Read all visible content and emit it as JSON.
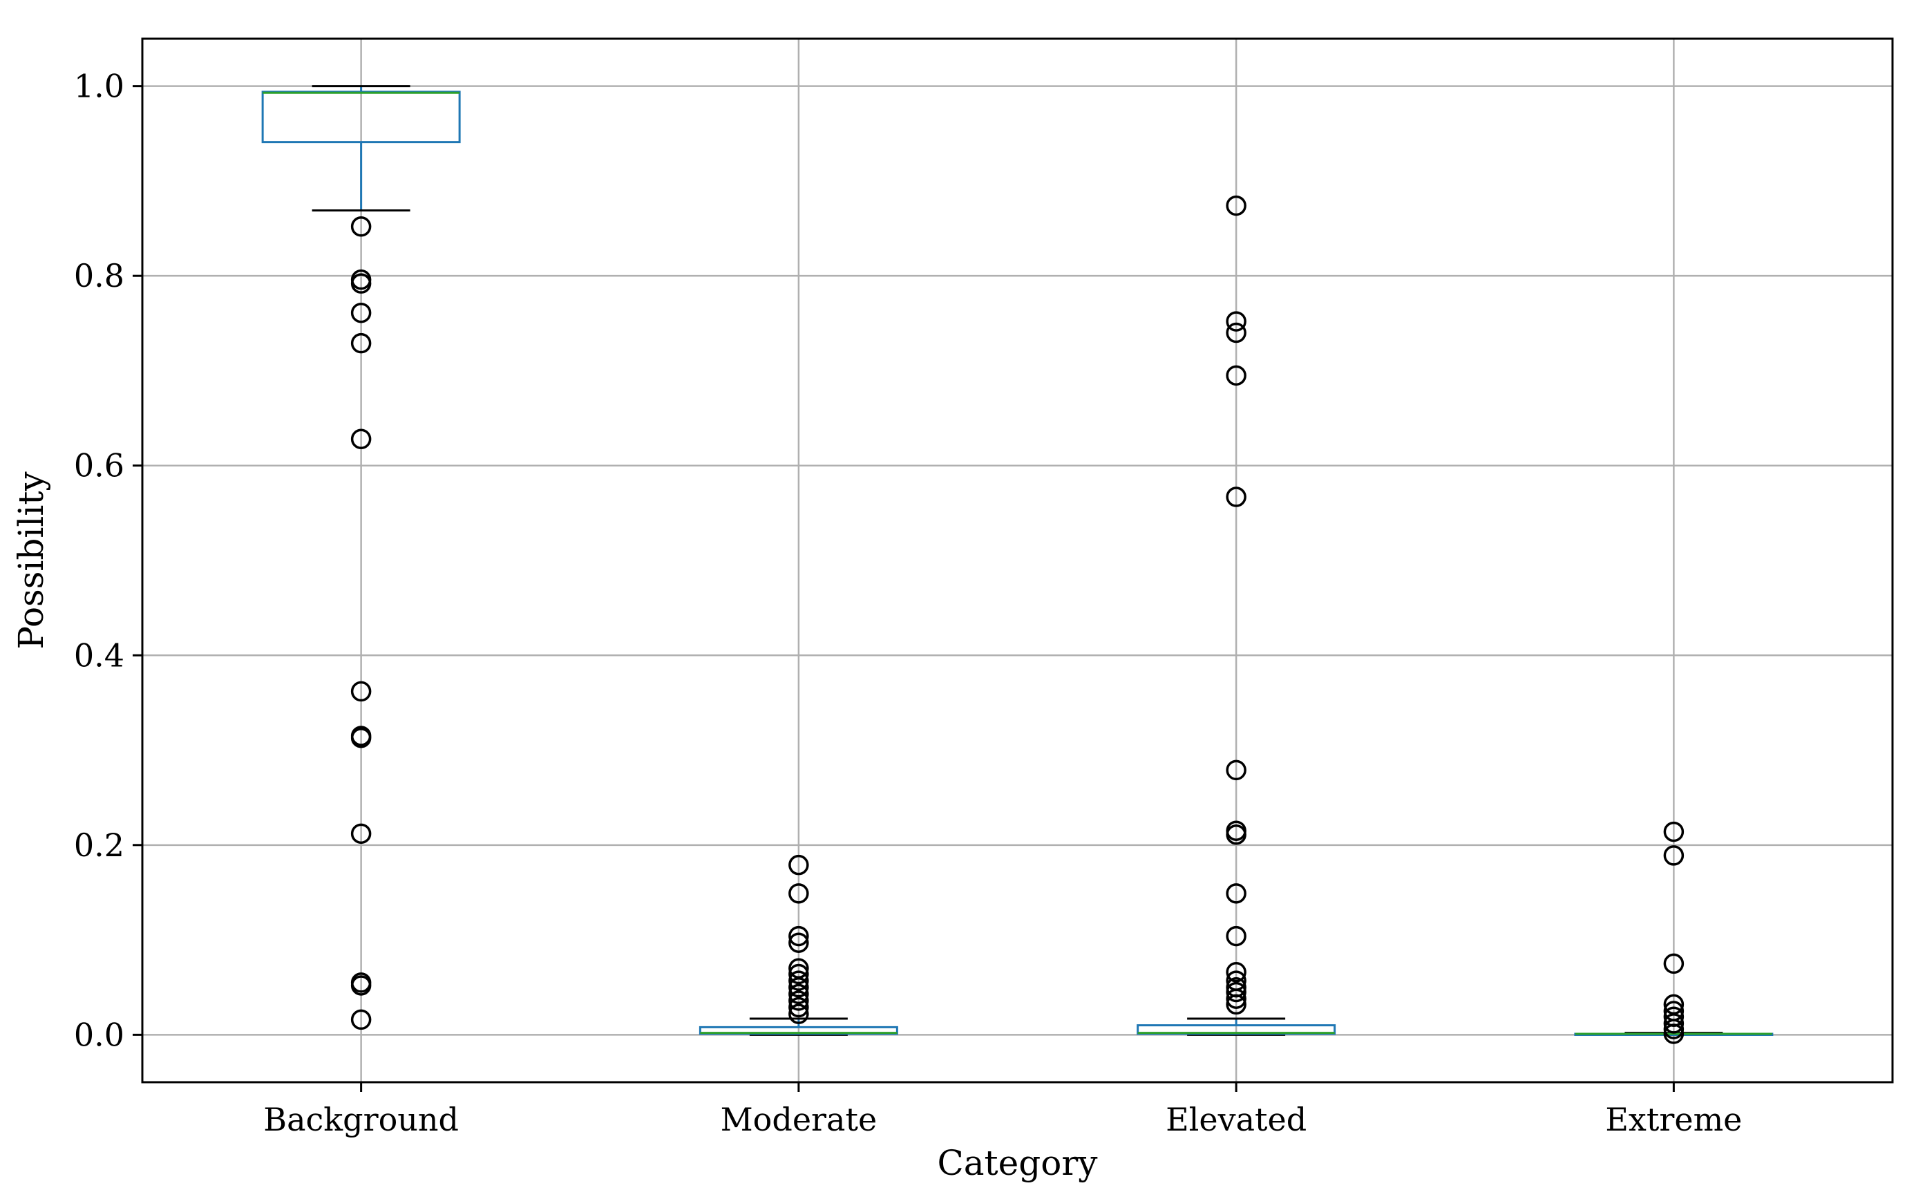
{
  "chart_data": {
    "type": "box",
    "title": "",
    "xlabel": "Category",
    "ylabel": "Possibility",
    "ylim": [
      -0.05,
      1.05
    ],
    "yticks": [
      0.0,
      0.2,
      0.4,
      0.6,
      0.8,
      1.0
    ],
    "ytick_labels": [
      "0.0",
      "0.2",
      "0.4",
      "0.6",
      "0.8",
      "1.0"
    ],
    "grid": true,
    "categories": [
      "Background",
      "Moderate",
      "Elevated",
      "Extreme"
    ],
    "boxes": [
      {
        "category": "Background",
        "whisker_low": 0.869,
        "q1": 0.941,
        "median": 0.993,
        "q3": 0.994,
        "whisker_high": 1.0,
        "outliers": [
          0.852,
          0.796,
          0.792,
          0.761,
          0.729,
          0.628,
          0.362,
          0.315,
          0.313,
          0.212,
          0.055,
          0.052,
          0.016
        ]
      },
      {
        "category": "Moderate",
        "whisker_low": 0.0,
        "q1": 0.001,
        "median": 0.002,
        "q3": 0.008,
        "whisker_high": 0.017,
        "outliers": [
          0.179,
          0.149,
          0.104,
          0.097,
          0.07,
          0.064,
          0.057,
          0.05,
          0.043,
          0.036,
          0.029,
          0.022
        ]
      },
      {
        "category": "Elevated",
        "whisker_low": 0.0,
        "q1": 0.001,
        "median": 0.002,
        "q3": 0.01,
        "whisker_high": 0.017,
        "outliers": [
          0.874,
          0.752,
          0.74,
          0.695,
          0.567,
          0.279,
          0.215,
          0.211,
          0.149,
          0.104,
          0.066,
          0.057,
          0.05,
          0.045,
          0.038,
          0.032
        ]
      },
      {
        "category": "Extreme",
        "whisker_low": 0.0,
        "q1": 0.0,
        "median": 0.001,
        "q3": 0.001,
        "whisker_high": 0.002,
        "outliers": [
          0.214,
          0.189,
          0.075,
          0.032,
          0.025,
          0.019,
          0.012,
          0.006,
          0.001
        ]
      }
    ],
    "colors": {
      "box": "#1f77b4",
      "median": "#2ca02c",
      "whisker": "#1f77b4",
      "cap": "#000000",
      "flier": "#000000",
      "grid": "#b0b0b0",
      "axes": "#000000"
    }
  }
}
